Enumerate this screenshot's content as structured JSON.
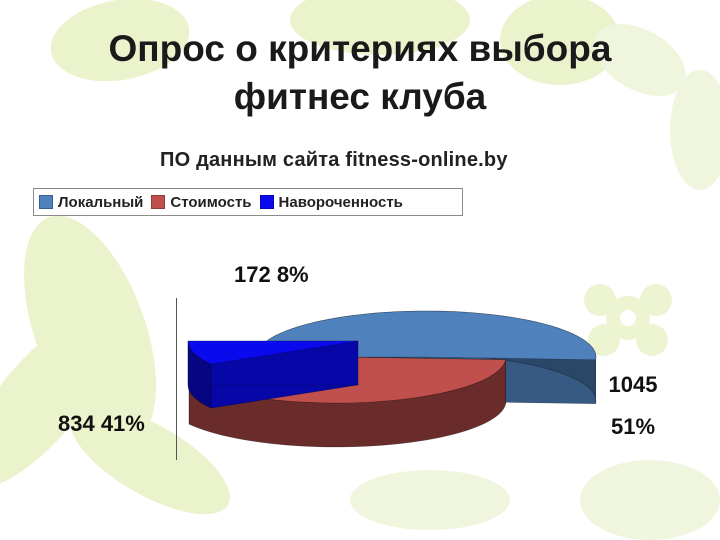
{
  "slide": {
    "title_line1": "Опрос о критериях выбора",
    "title_line2": "фитнес клуба"
  },
  "chart_data": {
    "type": "pie",
    "subtitle": "ПО данным сайта fitness-online.by",
    "legend_position": "top-left",
    "categories": [
      "Локальный",
      "Стоимость",
      "Навороченность"
    ],
    "values": [
      1045,
      834,
      172
    ],
    "percents": [
      51,
      41,
      8
    ],
    "colors": [
      "#4f81bd",
      "#c0504d",
      "#0a0aee"
    ],
    "data_labels": {
      "local_value": "1045",
      "local_percent": "51%",
      "cost": "834 41%",
      "nav": "172 8%"
    }
  }
}
